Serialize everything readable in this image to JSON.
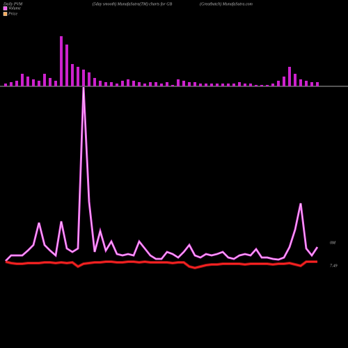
{
  "chart_data": [
    {
      "type": "bar",
      "title": "Daily PVM",
      "subtitle": "(5day smooth) MunafaSutra(TM) charts for GB",
      "source": "(Greatbatch) MunafaSutra.com",
      "values": [
        4,
        6,
        8,
        18,
        14,
        10,
        8,
        18,
        12,
        8,
        72,
        60,
        32,
        28,
        24,
        20,
        12,
        8,
        6,
        6,
        4,
        8,
        10,
        8,
        6,
        4,
        6,
        6,
        4,
        6,
        2,
        10,
        8,
        6,
        6,
        4,
        4,
        4,
        4,
        4,
        4,
        4,
        6,
        4,
        4,
        2,
        2,
        2,
        4,
        8,
        14,
        28,
        18,
        10,
        8,
        6,
        6
      ],
      "color": "#cc22cc",
      "ylim": [
        0,
        100
      ]
    },
    {
      "type": "line",
      "series": [
        {
          "name": "Volume",
          "color": "#ff55ff",
          "label": "0M",
          "values": [
            25,
            33,
            33,
            33,
            40,
            48,
            80,
            48,
            40,
            33,
            82,
            43,
            38,
            43,
            275,
            110,
            38,
            68,
            40,
            53,
            35,
            33,
            35,
            33,
            53,
            43,
            33,
            28,
            28,
            38,
            35,
            30,
            38,
            48,
            33,
            30,
            35,
            33,
            35,
            38,
            30,
            28,
            33,
            35,
            33,
            42,
            30,
            30,
            28,
            27,
            30,
            45,
            70,
            108,
            43,
            33,
            45
          ]
        },
        {
          "name": "Price",
          "color": "#ff2222",
          "label": "7.49",
          "values": [
            24,
            22,
            21,
            21,
            22,
            22,
            22,
            23,
            23,
            22,
            23,
            22,
            23,
            17,
            21,
            22,
            23,
            23,
            24,
            24,
            23,
            23,
            24,
            24,
            23,
            24,
            23,
            23,
            23,
            23,
            22,
            23,
            23,
            17,
            15,
            17,
            19,
            20,
            20,
            21,
            21,
            21,
            21,
            20,
            21,
            21,
            21,
            21,
            20,
            21,
            21,
            22,
            20,
            18,
            24,
            24,
            24
          ]
        }
      ],
      "ylim": [
        0,
        300
      ]
    }
  ]
}
